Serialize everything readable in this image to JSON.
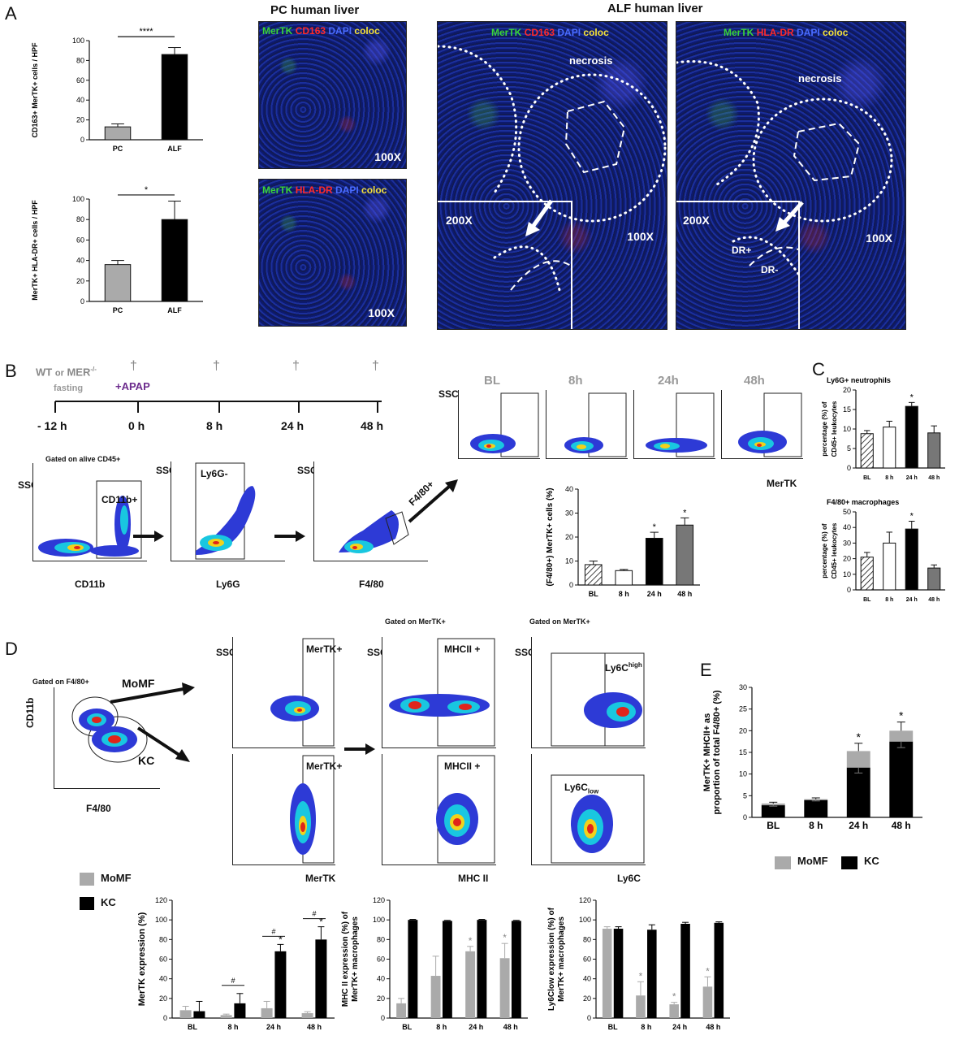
{
  "panels": {
    "A": "A",
    "B": "B",
    "C": "C",
    "D": "D",
    "E": "E"
  },
  "panelA": {
    "header_pc": "PC human liver",
    "header_alf": "ALF human liver",
    "micro1": {
      "m1": "MerTK",
      "m2": "CD163",
      "m3": "DAPI",
      "m4": "coloc",
      "mag": "100X"
    },
    "micro2": {
      "m1": "MerTK",
      "m2": "HLA-DR",
      "m3": "DAPI",
      "m4": "coloc",
      "mag": "100X"
    },
    "micro3": {
      "m1": "MerTK",
      "m2": "CD163",
      "m3": "DAPI",
      "m4": "coloc",
      "necrosis": "necrosis",
      "mag": "100X",
      "inset": "200X"
    },
    "micro4": {
      "m1": "MerTK",
      "m2": "HLA-DR",
      "m3": "DAPI",
      "m4": "coloc",
      "necrosis": "necrosis",
      "mag": "100X",
      "inset": "200X",
      "drp": "DR+",
      "drm": "DR-"
    }
  },
  "panelB": {
    "timeline": {
      "group": "WT",
      "or": "or",
      "mer": "MER",
      "mer_sup": "-/-",
      "fasting": "fasting",
      "apap": "+APAP",
      "dagger": "†",
      "ticks": [
        "- 12 h",
        "0 h",
        "8 h",
        "24 h",
        "48 h"
      ]
    },
    "gating_note": "Gated  on alive CD45+",
    "flow1": {
      "gate": "CD11b+",
      "x": "CD11b",
      "y": "SSC"
    },
    "flow2": {
      "gate": "Ly6G-",
      "x": "Ly6G",
      "y": "SSC"
    },
    "flow3": {
      "gate": "F4/80+",
      "x": "F4/80",
      "y": "SSC"
    },
    "timeplots": {
      "labels": [
        "BL",
        "8h",
        "24h",
        "48h"
      ],
      "x": "MerTK",
      "y": "SSC"
    }
  },
  "panelD": {
    "gating_note": "Gated  on F4/80+",
    "flow_main": {
      "x": "F4/80",
      "y": "CD11b",
      "momf": "MoMF",
      "kc": "KC"
    },
    "gate_note2": "Gated  on MerTK+",
    "gate_note3": "Gated  on MerTK+",
    "g1": "MerTK+",
    "g2": "MerTK+",
    "g3": "MHCII +",
    "g4": "MHCII +",
    "g5_main": "Ly6C",
    "g5_sup": "high",
    "g6_main": "Ly6C",
    "g6_sub": "low",
    "x1": "MerTK",
    "x2": "MHC II",
    "x3": "Ly6C",
    "ssc": "SSC",
    "legend": {
      "momf": "MoMF",
      "kc": "KC"
    }
  },
  "panelE_legend": {
    "momf": "MoMF",
    "kc": "KC"
  },
  "chart_data": [
    {
      "id": "A1",
      "type": "bar",
      "categories": [
        "PC",
        "ALF"
      ],
      "values": [
        13,
        86
      ],
      "errors": [
        3,
        7
      ],
      "ylabel": "CD163+ MerTK+ cells / HPF",
      "ylim": [
        0,
        100
      ],
      "yticks": [
        0,
        20,
        40,
        60,
        80,
        100
      ],
      "sig": "****"
    },
    {
      "id": "A2",
      "type": "bar",
      "categories": [
        "PC",
        "ALF"
      ],
      "values": [
        36,
        80
      ],
      "errors": [
        4,
        18
      ],
      "ylabel": "MerTK+ HLA-DR+ cells / HPF",
      "ylim": [
        0,
        100
      ],
      "yticks": [
        0,
        20,
        40,
        60,
        80,
        100
      ],
      "sig": "*"
    },
    {
      "id": "B",
      "type": "bar",
      "categories": [
        "BL",
        "8 h",
        "24 h",
        "48 h"
      ],
      "values": [
        8.5,
        6,
        19.5,
        25
      ],
      "errors": [
        1.5,
        0.5,
        2.5,
        3
      ],
      "ylabel": "(F4/80+) MerTK+ cells (%)",
      "ylim": [
        0,
        40
      ],
      "yticks": [
        0,
        10,
        20,
        30,
        40
      ],
      "sig": [
        "",
        "",
        "*",
        "*"
      ]
    },
    {
      "id": "C1",
      "type": "bar",
      "title": "Ly6G+ neutrophils",
      "categories": [
        "BL",
        "8 h",
        "24 h",
        "48 h"
      ],
      "values": [
        8.8,
        10.5,
        15.8,
        9
      ],
      "errors": [
        0.8,
        1.5,
        1,
        1.8
      ],
      "ylabel": "percentage (%) of CD45+ leukocytes",
      "ylim": [
        0,
        20
      ],
      "yticks": [
        0,
        5,
        10,
        15,
        20
      ],
      "sig": [
        "",
        "",
        "*",
        ""
      ]
    },
    {
      "id": "C2",
      "type": "bar",
      "title": "F4/80+ macrophages",
      "categories": [
        "BL",
        "8 h",
        "24 h",
        "48 h"
      ],
      "values": [
        21,
        30,
        39,
        14
      ],
      "errors": [
        3,
        7,
        5,
        2
      ],
      "ylabel": "percentage (%) of CD45+ leukocytes",
      "ylim": [
        0,
        50
      ],
      "yticks": [
        0,
        10,
        20,
        30,
        40,
        50
      ],
      "sig": [
        "",
        "",
        "*",
        ""
      ]
    },
    {
      "id": "E",
      "type": "bar",
      "stacked": true,
      "categories": [
        "BL",
        "8 h",
        "24 h",
        "48 h"
      ],
      "series": [
        {
          "name": "KC",
          "values": [
            2.8,
            4,
            11.5,
            17.5
          ]
        },
        {
          "name": "MoMF",
          "values": [
            0.4,
            0.2,
            3.8,
            2.5
          ]
        }
      ],
      "errors": [
        0.3,
        0.3,
        1.8,
        2
      ],
      "ylabel": "MerTK+ MHCII+ as proportion of total F4/80+ (%)",
      "ylim": [
        0,
        30
      ],
      "yticks": [
        0,
        5,
        10,
        15,
        20,
        25,
        30
      ],
      "sig": [
        "",
        "",
        "*",
        "*"
      ]
    },
    {
      "id": "D1",
      "type": "bar",
      "grouped": true,
      "categories": [
        "BL",
        "8 h",
        "24 h",
        "48 h"
      ],
      "series": [
        {
          "name": "MoMF",
          "values": [
            8,
            3,
            10,
            5
          ],
          "errors": [
            4,
            1,
            7,
            1.5
          ]
        },
        {
          "name": "KC",
          "values": [
            7,
            15,
            68,
            80
          ],
          "errors": [
            10,
            10,
            7,
            13
          ]
        }
      ],
      "ylabel": "MerTK expression (%)",
      "ylim": [
        0,
        120
      ],
      "yticks": [
        0,
        20,
        40,
        60,
        80,
        100,
        120
      ],
      "sig": [
        "",
        "#",
        "#",
        "#"
      ],
      "sig2": [
        "",
        "",
        "*",
        "*"
      ]
    },
    {
      "id": "D2",
      "type": "bar",
      "grouped": true,
      "categories": [
        "BL",
        "8 h",
        "24 h",
        "48 h"
      ],
      "series": [
        {
          "name": "MoMF",
          "values": [
            15,
            43,
            68,
            61
          ],
          "errors": [
            5,
            20,
            5,
            15
          ]
        },
        {
          "name": "KC",
          "values": [
            100,
            99,
            100,
            99
          ],
          "errors": [
            0.5,
            0.5,
            0.5,
            0.5
          ]
        }
      ],
      "ylabel": "MHC II expression (%) of MerTK+ macrophages",
      "ylim": [
        0,
        120
      ],
      "yticks": [
        0,
        20,
        40,
        60,
        80,
        100,
        120
      ],
      "sig": [
        "",
        "",
        "*",
        "*"
      ]
    },
    {
      "id": "D3",
      "type": "bar",
      "grouped": true,
      "categories": [
        "BL",
        "8 h",
        "24 h",
        "48 h"
      ],
      "series": [
        {
          "name": "MoMF",
          "values": [
            91,
            23,
            14,
            32
          ],
          "errors": [
            2,
            14,
            2,
            10
          ]
        },
        {
          "name": "KC",
          "values": [
            91,
            90,
            96,
            97
          ],
          "errors": [
            2,
            5,
            1.5,
            1
          ]
        }
      ],
      "ylabel": "Ly6Clow expression (%) of MerTK+ macrophages",
      "ylim": [
        0,
        120
      ],
      "yticks": [
        0,
        20,
        40,
        60,
        80,
        100,
        120
      ],
      "sig": [
        "",
        "*",
        "*",
        "*"
      ]
    }
  ]
}
